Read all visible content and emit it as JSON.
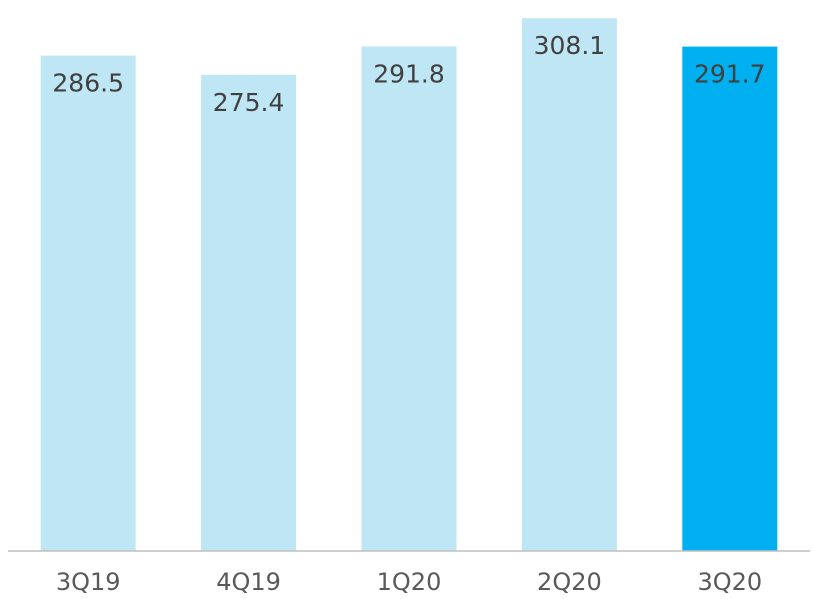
{
  "chart_data": {
    "type": "bar",
    "title": "",
    "xlabel": "",
    "ylabel": "",
    "categories": [
      "3Q19",
      "4Q19",
      "1Q20",
      "2Q20",
      "3Q20"
    ],
    "values": [
      286.5,
      275.4,
      291.8,
      308.1,
      291.7
    ],
    "ylim": [
      0,
      314
    ],
    "grid": false,
    "legend": "none",
    "colors": {
      "bar": "#bfe6f5",
      "highlight_bar": "#00b0f0",
      "axis": "#bfbfbf",
      "label": "#404040",
      "tick": "#595959"
    },
    "highlight_index": 4
  }
}
